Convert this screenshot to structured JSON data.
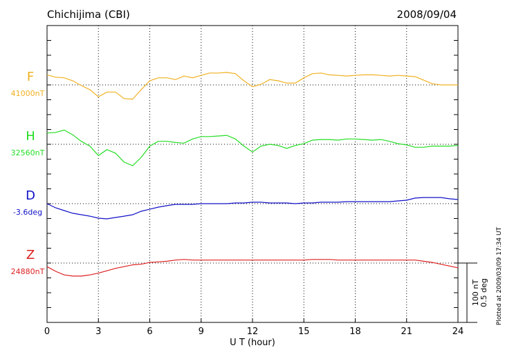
{
  "chart_data": {
    "type": "line",
    "title": "Chichijima (CBI)",
    "date": "2008/09/04",
    "x_label": "U T (hour)",
    "footnote": "Plotted at 2009/03/09 17:34 UT",
    "xlim": [
      0,
      24
    ],
    "xticks": [
      0,
      3,
      6,
      9,
      12,
      15,
      18,
      21,
      24
    ],
    "grid": true,
    "scale": [
      {
        "value": 100,
        "label": "100 nT"
      },
      {
        "value": 0.5,
        "label": "0.5 deg"
      }
    ],
    "x": [
      0,
      0.5,
      1,
      1.5,
      2,
      2.5,
      3,
      3.5,
      4,
      4.5,
      5,
      5.5,
      6,
      6.5,
      7,
      7.5,
      8,
      8.5,
      9,
      9.5,
      10,
      10.5,
      11,
      11.5,
      12,
      12.5,
      13,
      13.5,
      14,
      14.5,
      15,
      15.5,
      16,
      16.5,
      17,
      17.5,
      18,
      18.5,
      19,
      19.5,
      20,
      20.5,
      21,
      21.5,
      22,
      22.5,
      23,
      23.5,
      24
    ],
    "series": [
      {
        "name": "F",
        "baseline_label": "41000nT",
        "color": "#f0b020",
        "axis": "y",
        "values": [
          17,
          13,
          12,
          7,
          -1,
          -8,
          -20,
          -12,
          -12,
          -23,
          -24,
          -8,
          7,
          12,
          12,
          9,
          15,
          12,
          16,
          20,
          20,
          21,
          19,
          7,
          -3,
          1,
          9,
          7,
          3,
          3,
          12,
          19,
          20,
          17,
          16,
          15,
          16,
          17,
          17,
          16,
          15,
          16,
          15,
          14,
          8,
          2,
          0,
          0,
          0
        ]
      },
      {
        "name": "H",
        "baseline_label": "32560nT",
        "color": "#22dd22",
        "axis": "y",
        "values": [
          19,
          20,
          24,
          16,
          5,
          -3,
          -19,
          -9,
          -15,
          -30,
          -36,
          -22,
          -3,
          5,
          5,
          3,
          2,
          9,
          13,
          13,
          14,
          15,
          9,
          -3,
          -13,
          -3,
          0,
          -2,
          -7,
          -2,
          1,
          7,
          8,
          8,
          7,
          9,
          9,
          8,
          7,
          8,
          5,
          1,
          -1,
          -5,
          -5,
          -3,
          -3,
          -3,
          -2
        ]
      },
      {
        "name": "D",
        "baseline_label": "-3.6deg",
        "color": "#1010c8",
        "axis": "y2",
        "values": [
          0,
          -0.035,
          -0.058,
          -0.081,
          -0.093,
          -0.105,
          -0.122,
          -0.128,
          -0.116,
          -0.105,
          -0.093,
          -0.064,
          -0.047,
          -0.029,
          -0.017,
          -0.006,
          -0.006,
          -0.006,
          0,
          0,
          0,
          0,
          0.006,
          0.006,
          0.012,
          0.012,
          0.006,
          0.006,
          0.006,
          0,
          0.006,
          0.006,
          0.012,
          0.012,
          0.012,
          0.017,
          0.017,
          0.017,
          0.017,
          0.017,
          0.017,
          0.023,
          0.029,
          0.047,
          0.052,
          0.052,
          0.052,
          0.041,
          0.035
        ]
      },
      {
        "name": "Z",
        "baseline_label": "24880nT",
        "color": "#dd2020",
        "axis": "y",
        "values": [
          -6,
          -14,
          -20,
          -22,
          -22,
          -20,
          -17,
          -13,
          -9,
          -6,
          -3,
          -2,
          1,
          2,
          3,
          5,
          6,
          5,
          5,
          5,
          5,
          5,
          5,
          5,
          5,
          5,
          5,
          5,
          5,
          5,
          5,
          6,
          6,
          6,
          5,
          5,
          5,
          5,
          5,
          5,
          5,
          5,
          5,
          5,
          3,
          1,
          -2,
          -5,
          -8
        ]
      }
    ]
  }
}
